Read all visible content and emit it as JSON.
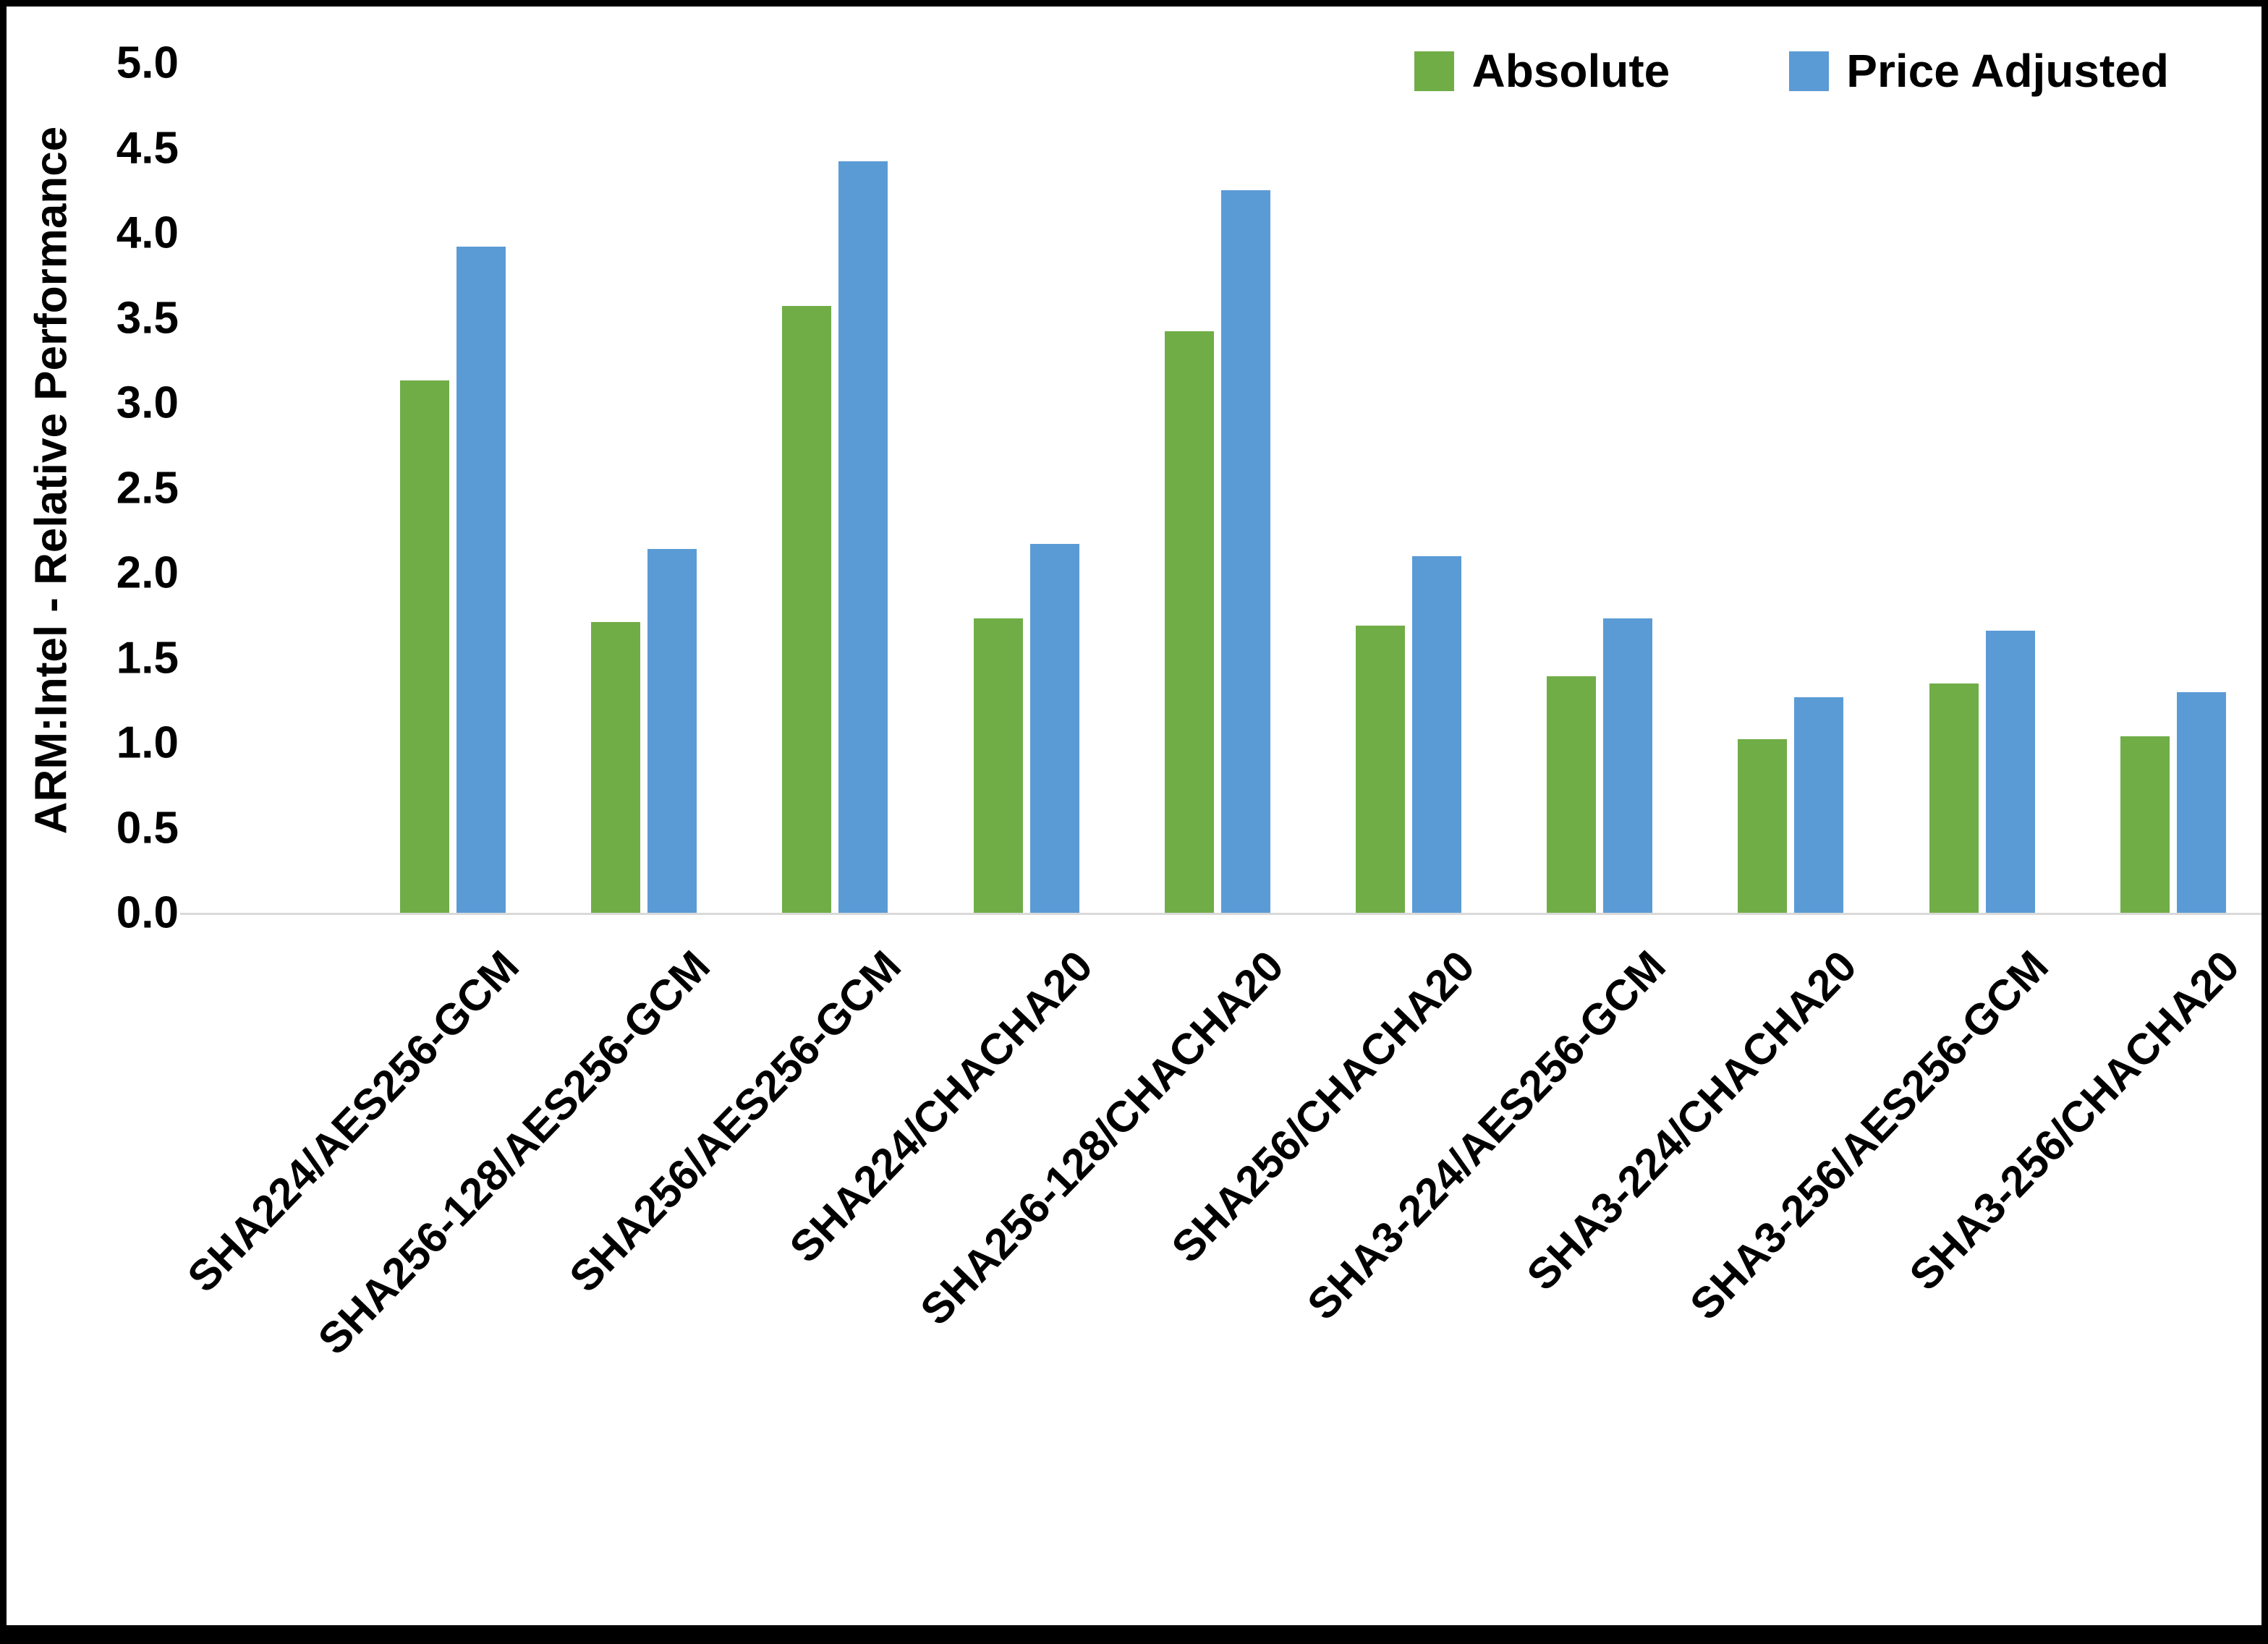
{
  "chart_data": {
    "type": "bar",
    "title": "",
    "xlabel": "",
    "ylabel": "ARM:Intel - Relative Performance",
    "ylim": [
      0,
      5
    ],
    "ytick_step": 0.5,
    "ytick_labels": [
      "5.0",
      "4.5",
      "4.0",
      "3.5",
      "3.0",
      "2.5",
      "2.0",
      "1.5",
      "1.0",
      "0.5",
      "0.0"
    ],
    "grid": false,
    "legend_position": "top-right",
    "categories": [
      "SHA224/AES256-GCM",
      "SHA256-128/AES256-GCM",
      "SHA256/AES256-GCM",
      "SHA224/CHACHA20",
      "SHA256-128/CHACHA20",
      "SHA256/CHACHA20",
      "SHA3-224/AES256-GCM",
      "SHA3-224/CHACHA20",
      "SHA3-256/AES256-GCM",
      "SHA3-256/CHACHA20"
    ],
    "series": [
      {
        "name": "Absolute",
        "color": "#70AD47",
        "values": [
          3.13,
          1.71,
          3.57,
          1.73,
          3.42,
          1.69,
          1.39,
          1.02,
          1.35,
          1.04
        ]
      },
      {
        "name": "Price Adjusted",
        "color": "#5B9BD5",
        "values": [
          3.92,
          2.14,
          4.42,
          2.17,
          4.25,
          2.1,
          1.73,
          1.27,
          1.66,
          1.3
        ]
      }
    ]
  }
}
